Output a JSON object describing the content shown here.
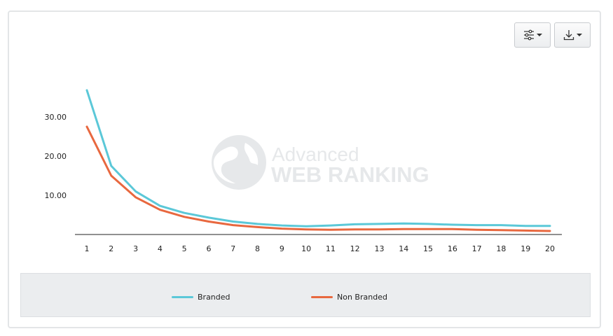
{
  "colors": {
    "branded": "#5bc8d8",
    "non_branded": "#e8683f",
    "axis": "#222222",
    "watermark": "#e6e8ea"
  },
  "toolbar": {
    "settings_icon": "sliders-icon",
    "download_icon": "download-icon"
  },
  "watermark": {
    "line1": "Advanced",
    "line2": "WEB RANKING"
  },
  "chart_data": {
    "type": "line",
    "title": "",
    "xlabel": "",
    "ylabel": "",
    "x": [
      1,
      2,
      3,
      4,
      5,
      6,
      7,
      8,
      9,
      10,
      11,
      12,
      13,
      14,
      15,
      16,
      17,
      18,
      19,
      20
    ],
    "ylim": [
      0,
      40
    ],
    "yticks": [
      "10.00",
      "20.00",
      "30.00"
    ],
    "grid": false,
    "legend": "bottom",
    "series": [
      {
        "name": "Branded",
        "values": [
          36.8,
          17.5,
          11.0,
          7.3,
          5.5,
          4.3,
          3.3,
          2.7,
          2.3,
          2.1,
          2.3,
          2.6,
          2.7,
          2.8,
          2.7,
          2.5,
          2.4,
          2.4,
          2.2,
          2.2
        ]
      },
      {
        "name": "Non Branded",
        "values": [
          27.5,
          15.0,
          9.5,
          6.3,
          4.5,
          3.3,
          2.4,
          1.9,
          1.5,
          1.3,
          1.2,
          1.3,
          1.3,
          1.4,
          1.4,
          1.4,
          1.2,
          1.1,
          1.0,
          0.9
        ]
      }
    ]
  }
}
